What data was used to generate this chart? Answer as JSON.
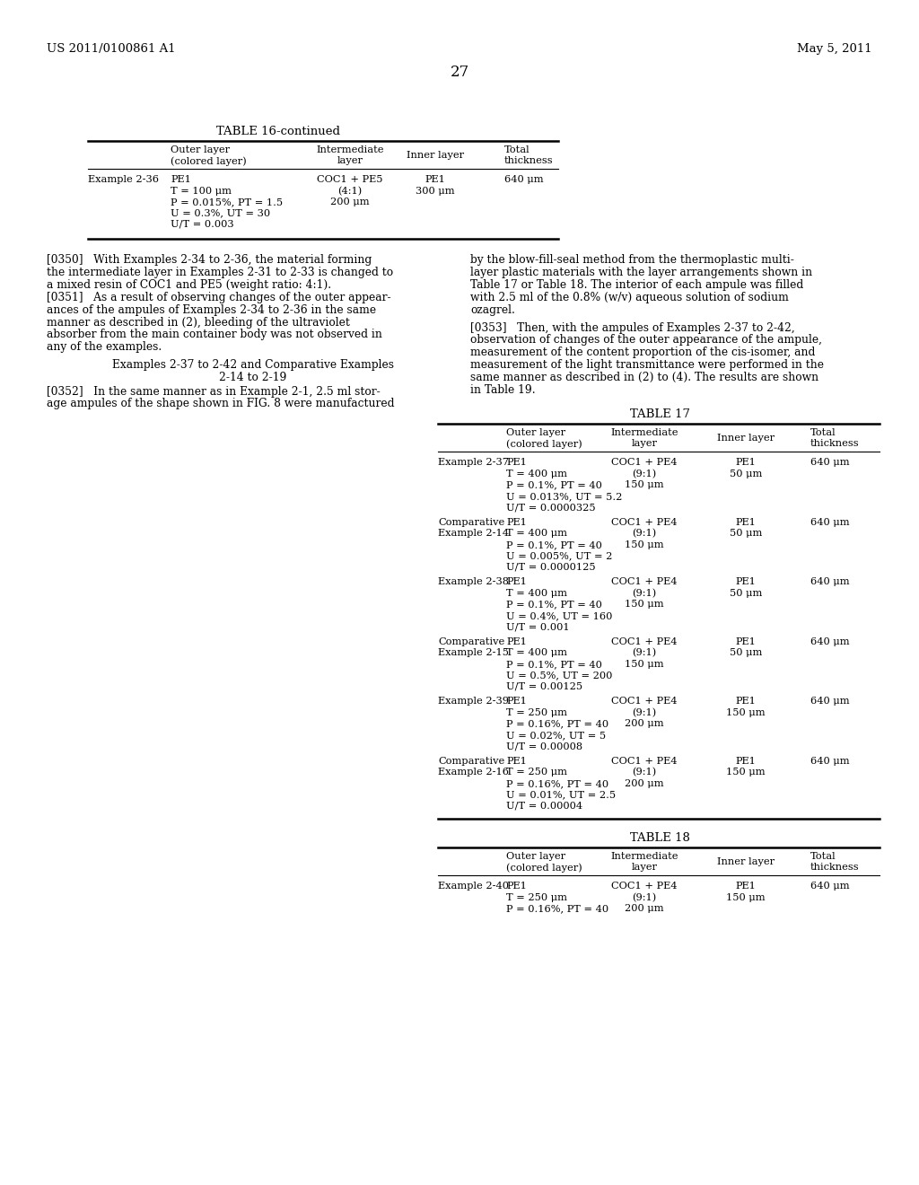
{
  "bg_color": "#ffffff",
  "header_left": "US 2011/0100861 A1",
  "header_right": "May 5, 2011",
  "page_number": "27",
  "table16_title": "TABLE 16-continued",
  "table16_rows": [
    {
      "col0": "Example 2-36",
      "col1": [
        "PE1",
        "T = 100 μm",
        "P = 0.015%, PT = 1.5",
        "U = 0.3%, UT = 30",
        "U/T = 0.003"
      ],
      "col2": [
        "COC1 + PE5",
        "(4:1)",
        "200 μm"
      ],
      "col3": [
        "PE1",
        "300 μm"
      ],
      "col4": "640 μm"
    }
  ],
  "para_350_lines": [
    "[0350]   With Examples 2-34 to 2-36, the material forming",
    "the intermediate layer in Examples 2-31 to 2-33 is changed to",
    "a mixed resin of COC1 and PE5 (weight ratio: 4:1)."
  ],
  "para_351_lines": [
    "[0351]   As a result of observing changes of the outer appear-",
    "ances of the ampules of Examples 2-34 to 2-36 in the same",
    "manner as described in (2), bleeding of the ultraviolet",
    "absorber from the main container body was not observed in",
    "any of the examples."
  ],
  "heading_lines": [
    "Examples 2-37 to 2-42 and Comparative Examples",
    "2-14 to 2-19"
  ],
  "para_352_lines": [
    "[0352]   In the same manner as in Example 2-1, 2.5 ml stor-",
    "age ampules of the shape shown in FIG. 8 were manufactured"
  ],
  "para_352r_lines": [
    "by the blow-fill-seal method from the thermoplastic multi-",
    "layer plastic materials with the layer arrangements shown in",
    "Table 17 or Table 18. The interior of each ampule was filled",
    "with 2.5 ml of the 0.8% (w/v) aqueous solution of sodium",
    "ozagrel."
  ],
  "para_353r_lines": [
    "[0353]   Then, with the ampules of Examples 2-37 to 2-42,",
    "observation of changes of the outer appearance of the ampule,",
    "measurement of the content proportion of the cis-isomer, and",
    "measurement of the light transmittance were performed in the",
    "same manner as described in (2) to (4). The results are shown",
    "in Table 19."
  ],
  "table17_title": "TABLE 17",
  "table17_rows": [
    {
      "col0": [
        "Example 2-37"
      ],
      "col1": [
        "PE1",
        "T = 400 μm",
        "P = 0.1%, PT = 40",
        "U = 0.013%, UT = 5.2",
        "U/T = 0.0000325"
      ],
      "col2": [
        "COC1 + PE4",
        "(9:1)",
        "150 μm"
      ],
      "col3": [
        "PE1",
        "50 μm"
      ],
      "col4": "640 μm"
    },
    {
      "col0": [
        "Comparative",
        "Example 2-14"
      ],
      "col1": [
        "PE1",
        "T = 400 μm",
        "P = 0.1%, PT = 40",
        "U = 0.005%, UT = 2",
        "U/T = 0.0000125"
      ],
      "col2": [
        "COC1 + PE4",
        "(9:1)",
        "150 μm"
      ],
      "col3": [
        "PE1",
        "50 μm"
      ],
      "col4": "640 μm"
    },
    {
      "col0": [
        "Example 2-38"
      ],
      "col1": [
        "PE1",
        "T = 400 μm",
        "P = 0.1%, PT = 40",
        "U = 0.4%, UT = 160",
        "U/T = 0.001"
      ],
      "col2": [
        "COC1 + PE4",
        "(9:1)",
        "150 μm"
      ],
      "col3": [
        "PE1",
        "50 μm"
      ],
      "col4": "640 μm"
    },
    {
      "col0": [
        "Comparative",
        "Example 2-15"
      ],
      "col1": [
        "PE1",
        "T = 400 μm",
        "P = 0.1%, PT = 40",
        "U = 0.5%, UT = 200",
        "U/T = 0.00125"
      ],
      "col2": [
        "COC1 + PE4",
        "(9:1)",
        "150 μm"
      ],
      "col3": [
        "PE1",
        "50 μm"
      ],
      "col4": "640 μm"
    },
    {
      "col0": [
        "Example 2-39"
      ],
      "col1": [
        "PE1",
        "T = 250 μm",
        "P = 0.16%, PT = 40",
        "U = 0.02%, UT = 5",
        "U/T = 0.00008"
      ],
      "col2": [
        "COC1 + PE4",
        "(9:1)",
        "200 μm"
      ],
      "col3": [
        "PE1",
        "150 μm"
      ],
      "col4": "640 μm"
    },
    {
      "col0": [
        "Comparative",
        "Example 2-16"
      ],
      "col1": [
        "PE1",
        "T = 250 μm",
        "P = 0.16%, PT = 40",
        "U = 0.01%, UT = 2.5",
        "U/T = 0.00004"
      ],
      "col2": [
        "COC1 + PE4",
        "(9:1)",
        "200 μm"
      ],
      "col3": [
        "PE1",
        "150 μm"
      ],
      "col4": "640 μm"
    }
  ],
  "table18_title": "TABLE 18",
  "table18_rows": [
    {
      "col0": [
        "Example 2-40"
      ],
      "col1": [
        "PE1",
        "T = 250 μm",
        "P = 0.16%, PT = 40"
      ],
      "col2": [
        "COC1 + PE4",
        "(9:1)",
        "200 μm"
      ],
      "col3": [
        "PE1",
        "150 μm"
      ],
      "col4": "640 μm"
    }
  ]
}
